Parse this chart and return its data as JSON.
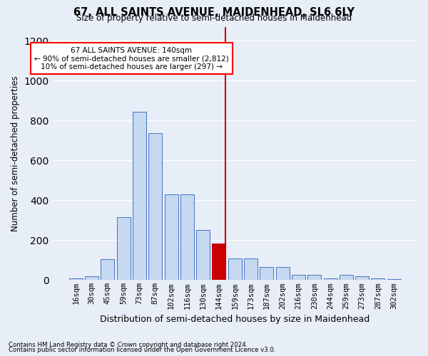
{
  "title": "67, ALL SAINTS AVENUE, MAIDENHEAD, SL6 6LY",
  "subtitle": "Size of property relative to semi-detached houses in Maidenhead",
  "xlabel": "Distribution of semi-detached houses by size in Maidenhead",
  "ylabel": "Number of semi-detached properties",
  "footnote1": "Contains HM Land Registry data © Crown copyright and database right 2024.",
  "footnote2": "Contains public sector information licensed under the Open Government Licence v3.0.",
  "annotation_line1": "67 ALL SAINTS AVENUE: 140sqm",
  "annotation_line2": "← 90% of semi-detached houses are smaller (2,812)",
  "annotation_line3": "10% of semi-detached houses are larger (297) →",
  "bar_labels": [
    "16sqm",
    "30sqm",
    "45sqm",
    "59sqm",
    "73sqm",
    "87sqm",
    "102sqm",
    "116sqm",
    "130sqm",
    "144sqm",
    "159sqm",
    "173sqm",
    "187sqm",
    "202sqm",
    "216sqm",
    "230sqm",
    "244sqm",
    "259sqm",
    "273sqm",
    "287sqm",
    "302sqm"
  ],
  "bar_heights": [
    8,
    20,
    105,
    315,
    845,
    735,
    430,
    430,
    250,
    185,
    110,
    110,
    65,
    65,
    28,
    25,
    8,
    25,
    20,
    8,
    5
  ],
  "bar_color": "#c6d9f0",
  "bar_edge_color": "#4472c4",
  "highlight_bar_index": 9,
  "highlight_bar_color": "#cc0000",
  "vline_color": "#cc0000",
  "ylim": [
    0,
    1270
  ],
  "yticks": [
    0,
    200,
    400,
    600,
    800,
    1000,
    1200
  ],
  "bg_color": "#e8eef7",
  "grid_color": "#ffffff"
}
